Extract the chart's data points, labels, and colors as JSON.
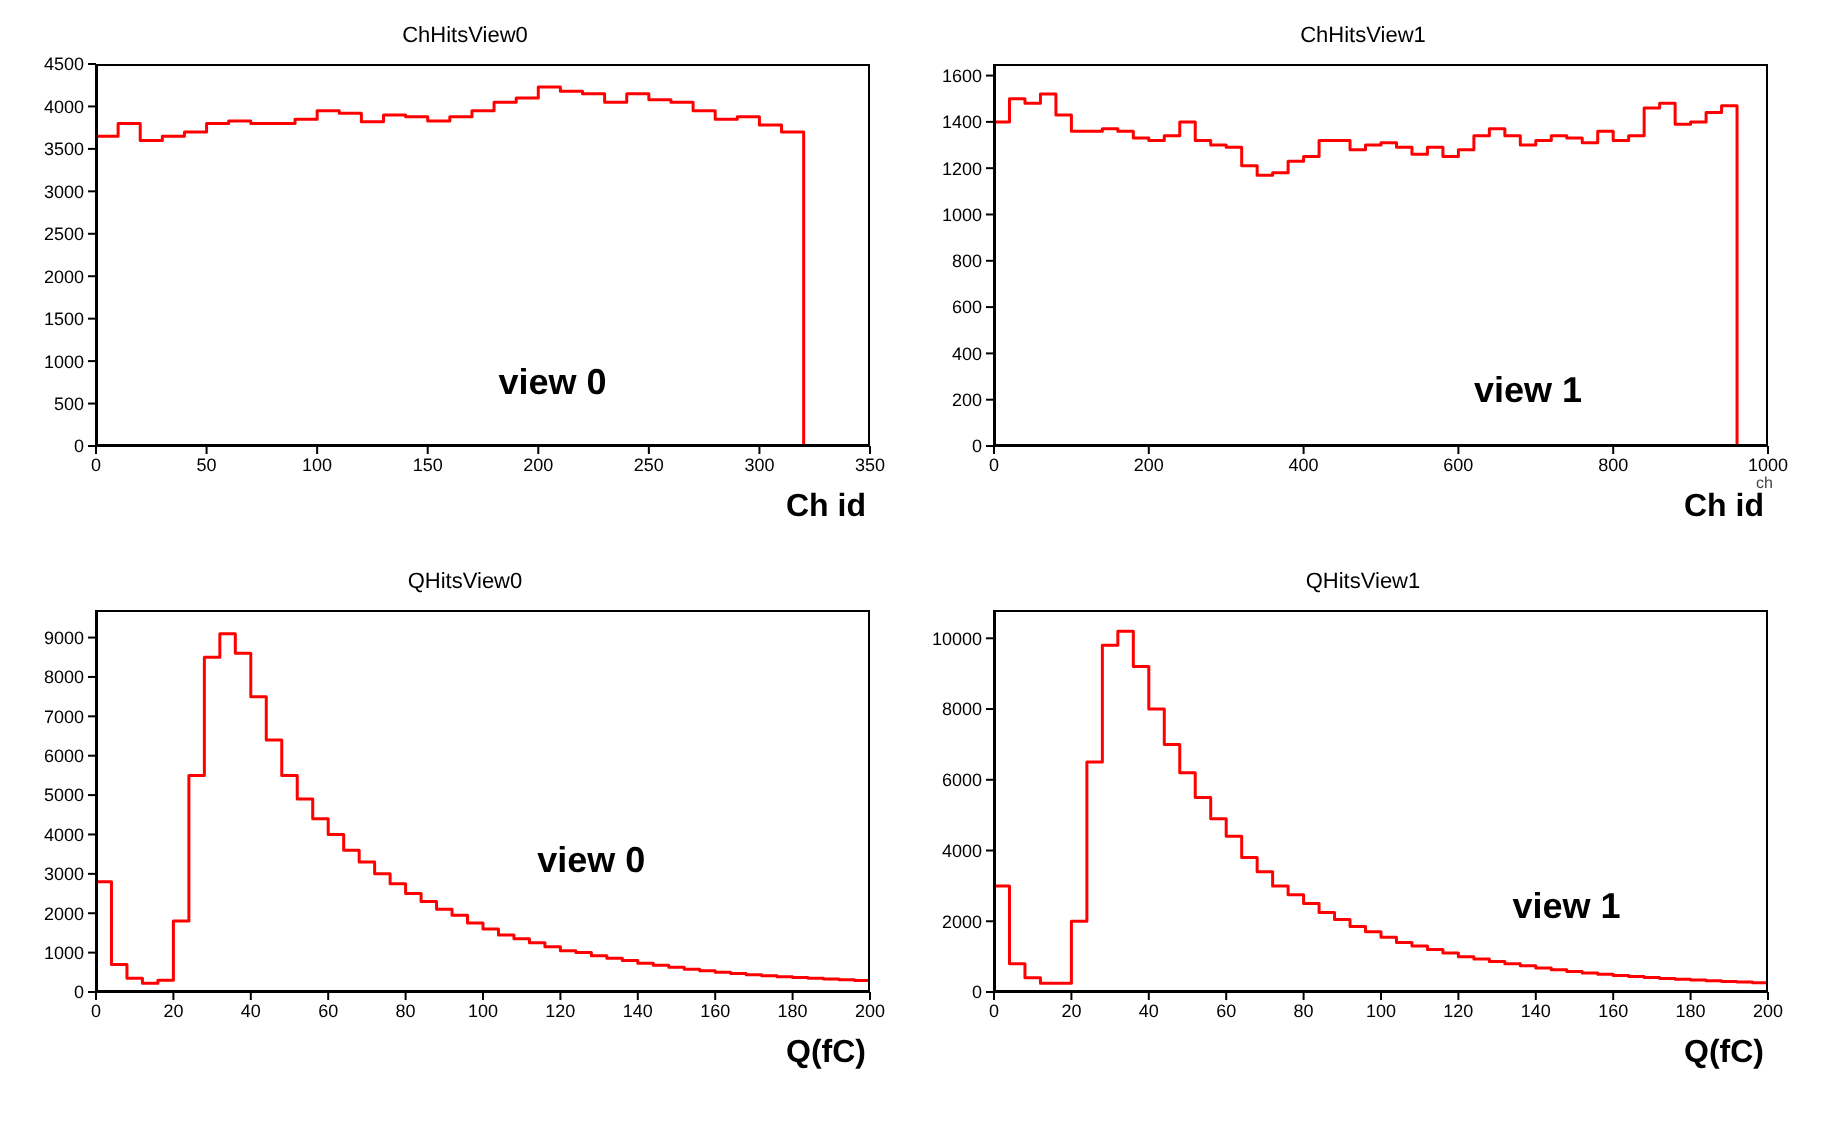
{
  "chart_data": [
    {
      "type": "histogram",
      "title": "ChHitsView0",
      "xlabel": "Ch id",
      "annotations": [
        "view 0"
      ],
      "color": "#ff0000",
      "bins": [
        0,
        10,
        20,
        30,
        40,
        50,
        60,
        70,
        80,
        90,
        100,
        110,
        120,
        130,
        140,
        150,
        160,
        170,
        180,
        190,
        200,
        210,
        220,
        230,
        240,
        250,
        260,
        270,
        280,
        290,
        300,
        310,
        320,
        330,
        340,
        350
      ],
      "values": [
        3650,
        3800,
        3600,
        3650,
        3700,
        3800,
        3830,
        3800,
        3800,
        3850,
        3950,
        3920,
        3820,
        3900,
        3880,
        3830,
        3880,
        3950,
        4050,
        4100,
        4230,
        4180,
        4150,
        4050,
        4150,
        4080,
        4050,
        3950,
        3850,
        3880,
        3780,
        3700,
        0,
        0,
        0
      ],
      "xlim": [
        0,
        350
      ],
      "xticks": [
        0,
        50,
        100,
        150,
        200,
        250,
        300,
        350
      ],
      "ylim": [
        0,
        4500
      ],
      "yticks": [
        0,
        500,
        1000,
        1500,
        2000,
        2500,
        3000,
        3500,
        4000,
        4500
      ]
    },
    {
      "type": "histogram",
      "title": "ChHitsView1",
      "xlabel": "Ch id",
      "annotations": [
        "view 1",
        "ch"
      ],
      "color": "#ff0000",
      "bins": [
        0,
        20,
        40,
        60,
        80,
        100,
        120,
        140,
        160,
        180,
        200,
        220,
        240,
        260,
        280,
        300,
        320,
        340,
        360,
        380,
        400,
        420,
        440,
        460,
        480,
        500,
        520,
        540,
        560,
        580,
        600,
        620,
        640,
        660,
        680,
        700,
        720,
        740,
        760,
        780,
        800,
        820,
        840,
        860,
        880,
        900,
        920,
        940,
        960,
        980,
        1000
      ],
      "values": [
        1400,
        1500,
        1480,
        1520,
        1430,
        1360,
        1360,
        1370,
        1360,
        1330,
        1320,
        1340,
        1400,
        1320,
        1300,
        1290,
        1210,
        1170,
        1180,
        1230,
        1250,
        1320,
        1320,
        1280,
        1300,
        1310,
        1290,
        1260,
        1290,
        1250,
        1280,
        1340,
        1370,
        1340,
        1300,
        1320,
        1340,
        1330,
        1310,
        1360,
        1320,
        1340,
        1460,
        1480,
        1390,
        1400,
        1440,
        1470,
        0,
        0
      ],
      "xlim": [
        0,
        1000
      ],
      "xticks": [
        0,
        200,
        400,
        600,
        800,
        1000
      ],
      "ylim": [
        0,
        1650
      ],
      "yticks": [
        0,
        200,
        400,
        600,
        800,
        1000,
        1200,
        1400,
        1600
      ]
    },
    {
      "type": "histogram",
      "title": "QHitsView0",
      "xlabel": "Q(fC)",
      "annotations": [
        "view 0"
      ],
      "color": "#ff0000",
      "bins": [
        0,
        4,
        8,
        12,
        16,
        20,
        24,
        28,
        32,
        36,
        40,
        44,
        48,
        52,
        56,
        60,
        64,
        68,
        72,
        76,
        80,
        84,
        88,
        92,
        96,
        100,
        104,
        108,
        112,
        116,
        120,
        124,
        128,
        132,
        136,
        140,
        144,
        148,
        152,
        156,
        160,
        164,
        168,
        172,
        176,
        180,
        184,
        188,
        192,
        196,
        200
      ],
      "values": [
        2800,
        700,
        350,
        220,
        300,
        1800,
        5500,
        8500,
        9100,
        8600,
        7500,
        6400,
        5500,
        4900,
        4400,
        4000,
        3600,
        3300,
        3000,
        2750,
        2500,
        2300,
        2100,
        1950,
        1750,
        1600,
        1450,
        1350,
        1250,
        1150,
        1050,
        1000,
        920,
        860,
        800,
        730,
        680,
        630,
        580,
        540,
        500,
        470,
        440,
        410,
        390,
        370,
        350,
        330,
        310,
        290
      ],
      "xlim": [
        0,
        200
      ],
      "xticks": [
        0,
        20,
        40,
        60,
        80,
        100,
        120,
        140,
        160,
        180,
        200
      ],
      "ylim": [
        0,
        9700
      ],
      "yticks": [
        0,
        1000,
        2000,
        3000,
        4000,
        5000,
        6000,
        7000,
        8000,
        9000
      ]
    },
    {
      "type": "histogram",
      "title": "QHitsView1",
      "xlabel": "Q(fC)",
      "annotations": [
        "view 1"
      ],
      "color": "#ff0000",
      "bins": [
        0,
        4,
        8,
        12,
        16,
        20,
        24,
        28,
        32,
        36,
        40,
        44,
        48,
        52,
        56,
        60,
        64,
        68,
        72,
        76,
        80,
        84,
        88,
        92,
        96,
        100,
        104,
        108,
        112,
        116,
        120,
        124,
        128,
        132,
        136,
        140,
        144,
        148,
        152,
        156,
        160,
        164,
        168,
        172,
        176,
        180,
        184,
        188,
        192,
        196,
        200
      ],
      "values": [
        3000,
        800,
        400,
        250,
        250,
        2000,
        6500,
        9800,
        10200,
        9200,
        8000,
        7000,
        6200,
        5500,
        4900,
        4400,
        3800,
        3400,
        3000,
        2750,
        2500,
        2250,
        2050,
        1850,
        1700,
        1550,
        1400,
        1300,
        1200,
        1100,
        1000,
        930,
        860,
        800,
        740,
        680,
        630,
        580,
        540,
        500,
        470,
        440,
        410,
        380,
        360,
        340,
        320,
        300,
        280,
        260
      ],
      "xlim": [
        0,
        200
      ],
      "xticks": [
        0,
        20,
        40,
        60,
        80,
        100,
        120,
        140,
        160,
        180,
        200
      ],
      "ylim": [
        0,
        10800
      ],
      "yticks": [
        0,
        2000,
        4000,
        6000,
        8000,
        10000
      ]
    }
  ]
}
